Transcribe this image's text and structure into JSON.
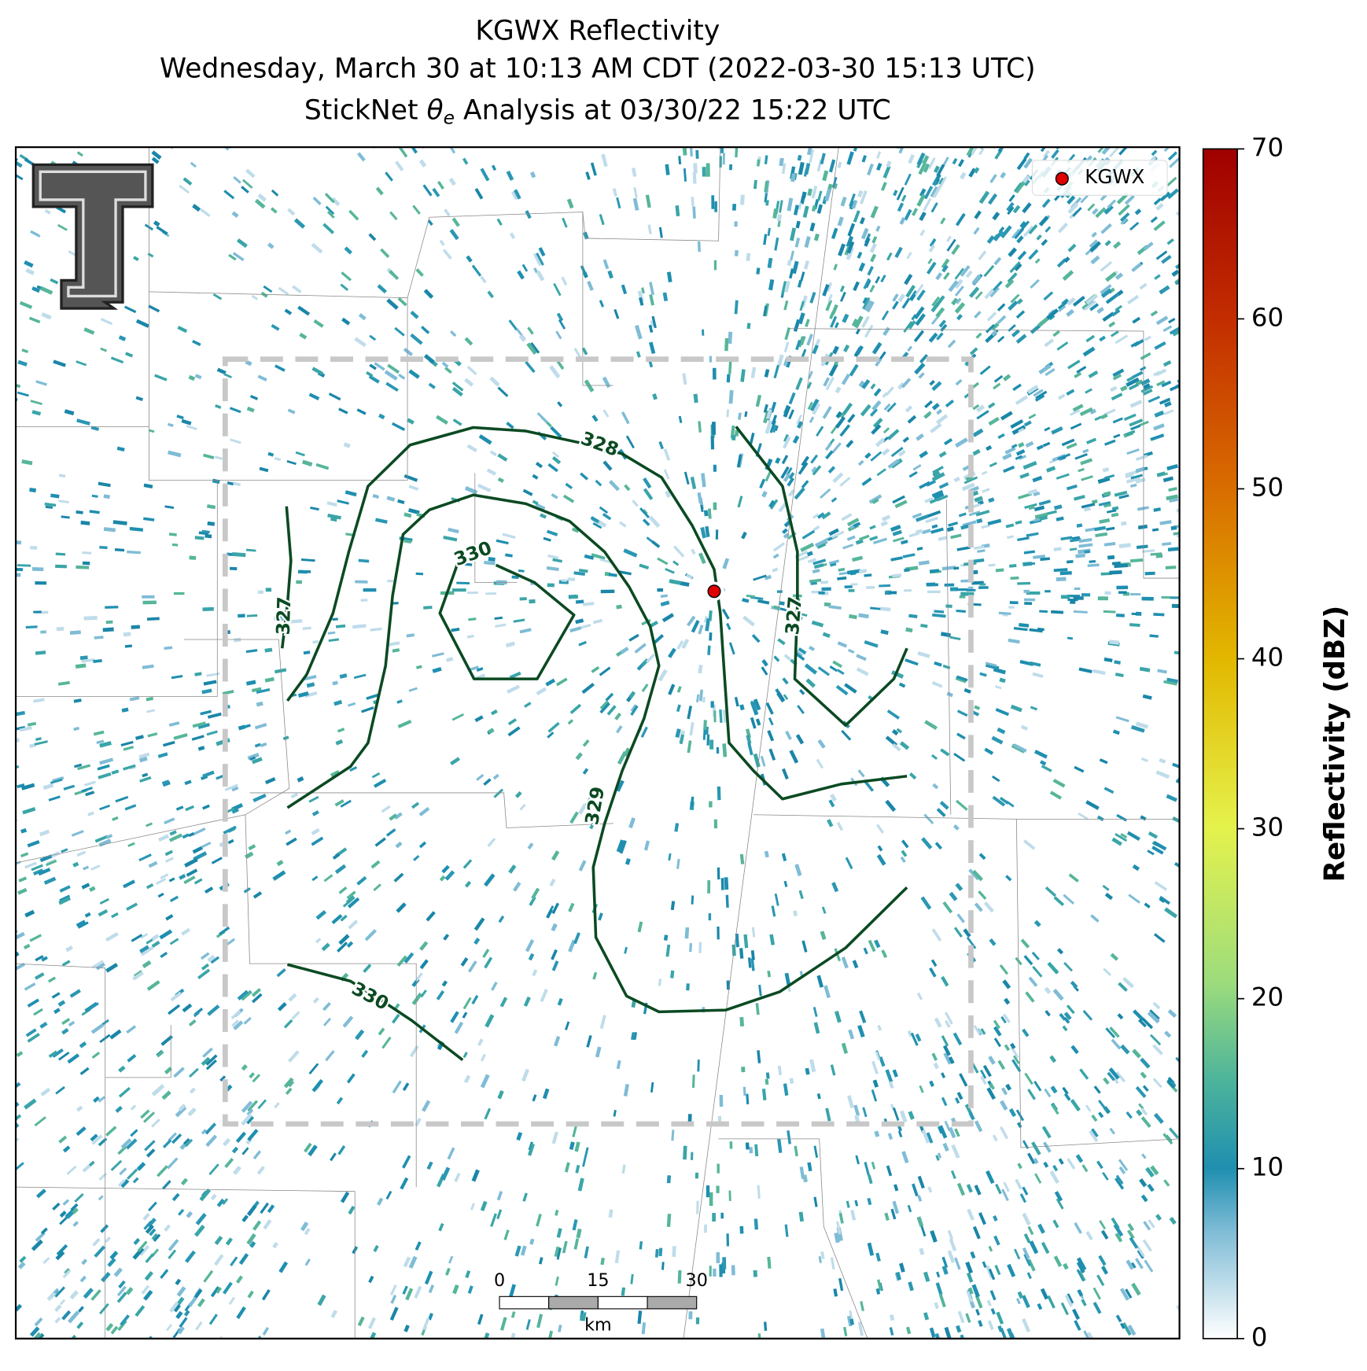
{
  "title": {
    "line1": "KGWX Reflectivity",
    "line2": "Wednesday, March 30 at 10:13 AM CDT (2022-03-30 15:13 UTC)",
    "line3": {
      "prefix": "StickNet ",
      "symbol": "θ",
      "subscript": "e",
      "suffix": " Analysis at 03/30/22 15:22 UTC"
    }
  },
  "legend": {
    "label": "KGWX"
  },
  "colorbar": {
    "label": "Reflectivity (dBZ)",
    "lim": [
      0,
      70
    ],
    "ticks": [
      0,
      10,
      20,
      30,
      40,
      50,
      60,
      70
    ]
  },
  "contour_labels": [
    328,
    330,
    327,
    327,
    329,
    330
  ],
  "scale_bar": {
    "ticks": [
      0,
      15,
      30
    ],
    "unit": "km"
  }
}
